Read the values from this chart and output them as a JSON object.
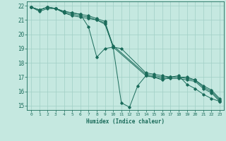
{
  "xlabel": "Humidex (Indice chaleur)",
  "xlim": [
    -0.5,
    23.5
  ],
  "ylim": [
    14.7,
    22.3
  ],
  "yticks": [
    15,
    16,
    17,
    18,
    19,
    20,
    21,
    22
  ],
  "xticks": [
    0,
    1,
    2,
    3,
    4,
    5,
    6,
    7,
    8,
    9,
    10,
    11,
    12,
    13,
    14,
    15,
    16,
    17,
    18,
    19,
    20,
    21,
    22,
    23
  ],
  "background_color": "#c5e8e0",
  "grid_color": "#a0cfc5",
  "line_color": "#1a6b5a",
  "lines": [
    {
      "x": [
        0,
        1,
        2,
        3,
        4,
        5,
        6,
        7,
        8,
        9,
        10,
        11,
        12,
        13,
        14,
        15,
        16,
        17,
        18,
        19,
        20,
        21,
        22,
        23
      ],
      "y": [
        21.9,
        21.7,
        21.9,
        21.8,
        21.6,
        21.5,
        21.4,
        20.5,
        18.4,
        19.0,
        19.1,
        15.2,
        14.9,
        16.4,
        17.1,
        17.0,
        16.8,
        17.0,
        17.1,
        16.5,
        16.2,
        15.8,
        15.5,
        15.3
      ]
    },
    {
      "x": [
        0,
        1,
        2,
        3,
        4,
        5,
        6,
        7,
        8,
        9,
        10,
        11,
        14,
        15,
        16,
        17,
        18,
        19,
        20,
        21,
        22,
        23
      ],
      "y": [
        21.9,
        21.7,
        21.9,
        21.8,
        21.6,
        21.5,
        21.4,
        21.3,
        21.1,
        20.9,
        19.1,
        19.0,
        17.3,
        17.2,
        17.1,
        17.0,
        17.0,
        17.0,
        16.8,
        16.4,
        16.1,
        15.5
      ]
    },
    {
      "x": [
        0,
        1,
        2,
        3,
        4,
        5,
        6,
        7,
        8,
        9,
        10,
        14,
        15,
        16,
        17,
        18,
        19,
        20,
        21,
        22,
        23
      ],
      "y": [
        21.9,
        21.7,
        21.9,
        21.8,
        21.5,
        21.4,
        21.3,
        21.2,
        21.0,
        20.8,
        19.2,
        17.2,
        17.1,
        17.0,
        17.0,
        17.0,
        16.9,
        16.8,
        16.3,
        16.0,
        15.4
      ]
    },
    {
      "x": [
        0,
        1,
        2,
        3,
        4,
        5,
        6,
        7,
        8,
        9,
        10,
        14,
        15,
        16,
        17,
        18,
        19,
        20,
        21,
        22,
        23
      ],
      "y": [
        21.9,
        21.6,
        21.8,
        21.8,
        21.5,
        21.3,
        21.2,
        21.1,
        21.0,
        20.7,
        19.1,
        17.1,
        17.0,
        16.9,
        16.9,
        16.9,
        16.8,
        16.7,
        16.2,
        15.9,
        15.3
      ]
    }
  ]
}
